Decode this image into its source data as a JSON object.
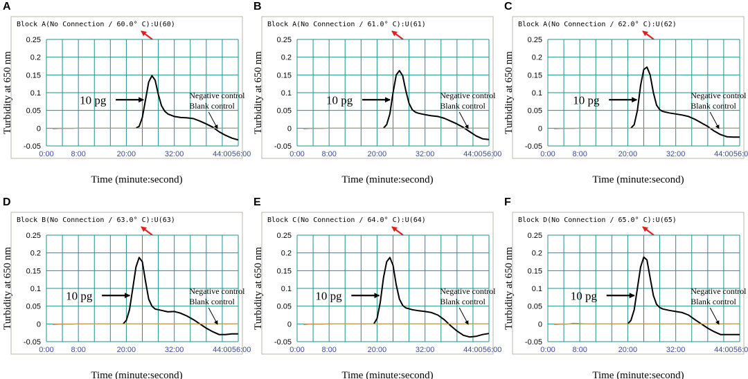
{
  "chart_data": [
    {
      "type": "line",
      "panel_label": "A",
      "title": "Block A(No Connection / 60.0° C):U(60)",
      "ylabel": "Turbidity at 650 nm",
      "xlabel": "Time (minute:second)",
      "xtick_labels": [
        "0:00",
        "8:00",
        "20:00",
        "32:00",
        "44:00",
        "56:00"
      ],
      "ytick_labels": [
        "0.25",
        "0.2",
        "0.15",
        "0.1",
        "0.05",
        "0",
        "-0.05"
      ],
      "ylim": [
        -0.05,
        0.25
      ],
      "xlim": [
        0,
        60
      ],
      "grid": true,
      "series": [
        {
          "name": "10 pg",
          "x": [
            28,
            29,
            30,
            31,
            32,
            33,
            34,
            35,
            36,
            37,
            38,
            40,
            42,
            44,
            46,
            48,
            50,
            52,
            54,
            56,
            58,
            60
          ],
          "y": [
            0,
            0.005,
            0.03,
            0.08,
            0.13,
            0.148,
            0.135,
            0.095,
            0.063,
            0.048,
            0.04,
            0.033,
            0.03,
            0.029,
            0.027,
            0.02,
            0.012,
            0.003,
            -0.01,
            -0.02,
            -0.028,
            -0.033
          ]
        },
        {
          "name": "Negative control",
          "x": [
            2,
            4,
            6,
            8,
            10,
            12,
            14,
            16,
            18,
            20,
            22,
            24,
            26,
            28,
            30,
            32,
            34,
            36,
            38,
            40,
            42,
            44,
            46,
            48,
            50,
            52,
            54,
            56,
            58,
            60
          ],
          "y": [
            -0.002,
            -0.001,
            -0.001,
            -0.001,
            0,
            0,
            0,
            0,
            0,
            0,
            0,
            0,
            0,
            0,
            0,
            0,
            0,
            0,
            0,
            0,
            0,
            0,
            0,
            0,
            0,
            0,
            0,
            0,
            0,
            0
          ]
        },
        {
          "name": "Blank control",
          "x": [
            2,
            60
          ],
          "y": [
            0,
            0
          ]
        }
      ],
      "annotations": {
        "sample": "10 pg",
        "neg": "Negative control",
        "blank": "Blank control"
      }
    },
    {
      "type": "line",
      "panel_label": "B",
      "title": "Block A(No Connection / 61.0° C):U(61)",
      "ylabel": "Turbidity at 650 nm",
      "xlabel": "Time (minute:second)",
      "xtick_labels": [
        "0:00",
        "8:00",
        "20:00",
        "32:00",
        "44:00",
        "56:00"
      ],
      "ytick_labels": [
        "0.25",
        "0.2",
        "0.15",
        "0.1",
        "0.05",
        "0",
        "-0.05"
      ],
      "ylim": [
        -0.05,
        0.25
      ],
      "xlim": [
        0,
        60
      ],
      "grid": true,
      "series": [
        {
          "name": "10 pg",
          "x": [
            27,
            28,
            29,
            30,
            31,
            32,
            33,
            34,
            35,
            36,
            37,
            38,
            40,
            42,
            44,
            46,
            48,
            50,
            52,
            54,
            56,
            58,
            60
          ],
          "y": [
            0,
            0.01,
            0.04,
            0.1,
            0.15,
            0.162,
            0.148,
            0.105,
            0.07,
            0.052,
            0.045,
            0.042,
            0.038,
            0.035,
            0.033,
            0.028,
            0.02,
            0.012,
            0.002,
            -0.01,
            -0.022,
            -0.03,
            -0.032
          ]
        },
        {
          "name": "Negative control",
          "x": [
            2,
            4,
            6,
            8,
            10,
            12,
            14,
            16,
            18,
            20,
            22,
            24,
            26,
            28,
            30,
            32,
            34,
            36,
            38,
            40,
            42,
            44,
            46,
            48,
            50,
            52,
            54,
            56,
            58,
            60
          ],
          "y": [
            -0.002,
            -0.001,
            -0.001,
            -0.001,
            0,
            0,
            0,
            0,
            0,
            0,
            0,
            0,
            0,
            0,
            0,
            0,
            0,
            0,
            0,
            0,
            0,
            0,
            0,
            0,
            0,
            0,
            0,
            0,
            0,
            0
          ]
        },
        {
          "name": "Blank control",
          "x": [
            2,
            60
          ],
          "y": [
            0,
            0
          ]
        }
      ],
      "annotations": {
        "sample": "10 pg",
        "neg": "Negative control",
        "blank": "Blank control"
      }
    },
    {
      "type": "line",
      "panel_label": "C",
      "title": "Block A(No Connection / 62.0° C):U(62)",
      "ylabel": "Turbidity at 650 nm",
      "xlabel": "Time (minute:second)",
      "xtick_labels": [
        "0:00",
        "8:00",
        "20:00",
        "32:00",
        "44:00",
        "56:00"
      ],
      "ytick_labels": [
        "0.25",
        "0.2",
        "0.15",
        "0.1",
        "0.05",
        "0",
        "-0.05"
      ],
      "ylim": [
        -0.05,
        0.25
      ],
      "xlim": [
        0,
        60
      ],
      "grid": true,
      "series": [
        {
          "name": "10 pg",
          "x": [
            26,
            27,
            28,
            29,
            30,
            31,
            32,
            33,
            34,
            35,
            36,
            38,
            40,
            42,
            44,
            46,
            48,
            50,
            52,
            54,
            56,
            58,
            60
          ],
          "y": [
            0,
            0.01,
            0.05,
            0.12,
            0.165,
            0.172,
            0.15,
            0.1,
            0.065,
            0.052,
            0.047,
            0.043,
            0.04,
            0.037,
            0.033,
            0.025,
            0.015,
            0.005,
            -0.008,
            -0.018,
            -0.024,
            -0.025,
            -0.025
          ]
        },
        {
          "name": "Negative control",
          "x": [
            2,
            4,
            6,
            8,
            10,
            12,
            14,
            16,
            18,
            20,
            22,
            24,
            26,
            28,
            30,
            32,
            34,
            36,
            38,
            40,
            42,
            44,
            46,
            48,
            50,
            52,
            54,
            56,
            58,
            60
          ],
          "y": [
            -0.002,
            -0.001,
            -0.001,
            -0.001,
            0,
            0,
            0,
            0,
            0,
            0,
            0,
            0,
            0,
            0,
            0,
            0,
            0,
            0,
            0,
            0,
            0,
            0,
            0,
            0,
            0,
            0,
            0,
            0,
            0,
            0
          ]
        },
        {
          "name": "Blank control",
          "x": [
            2,
            60
          ],
          "y": [
            0,
            0
          ]
        }
      ],
      "annotations": {
        "sample": "10 pg",
        "neg": "Negative control",
        "blank": "Blank control"
      }
    },
    {
      "type": "line",
      "panel_label": "D",
      "title": "Block B(No Connection / 63.0° C):U(63)",
      "ylabel": "Turbidity at 650 nm",
      "xlabel": "Time (minute:second)",
      "xtick_labels": [
        "0:00",
        "8:00",
        "20:00",
        "32:00",
        "44:00",
        "56:00"
      ],
      "ytick_labels": [
        "0.25",
        "0.2",
        "0.15",
        "0.1",
        "0.05",
        "0",
        "-0.05"
      ],
      "ylim": [
        -0.05,
        0.25
      ],
      "xlim": [
        0,
        60
      ],
      "grid": true,
      "series": [
        {
          "name": "10 pg",
          "x": [
            24,
            25,
            26,
            27,
            28,
            29,
            30,
            31,
            32,
            33,
            34,
            36,
            38,
            40,
            42,
            44,
            46,
            48,
            50,
            52,
            54,
            56,
            58,
            60
          ],
          "y": [
            0,
            0.01,
            0.04,
            0.1,
            0.16,
            0.187,
            0.175,
            0.12,
            0.07,
            0.05,
            0.042,
            0.038,
            0.034,
            0.035,
            0.03,
            0.022,
            0.012,
            0,
            -0.012,
            -0.022,
            -0.03,
            -0.03,
            -0.028,
            -0.028
          ]
        },
        {
          "name": "Negative control",
          "x": [
            2,
            4,
            6,
            8,
            10,
            12,
            14,
            16,
            18,
            20,
            22,
            24,
            26,
            28,
            30,
            32,
            34,
            36,
            38,
            40,
            42,
            44,
            46,
            48,
            50,
            52,
            54,
            56,
            58,
            60
          ],
          "y": [
            -0.002,
            -0.001,
            -0.001,
            -0.001,
            0,
            0,
            0,
            0,
            0,
            0,
            0,
            0,
            0,
            0,
            0,
            0,
            0,
            0,
            0,
            0,
            0,
            0,
            0,
            0,
            0,
            0,
            0,
            0,
            0,
            0
          ]
        },
        {
          "name": "Blank control",
          "x": [
            2,
            60
          ],
          "y": [
            0,
            0
          ]
        }
      ],
      "annotations": {
        "sample": "10 pg",
        "neg": "Negative control",
        "blank": "Blank control"
      }
    },
    {
      "type": "line",
      "panel_label": "E",
      "title": "Block C(No Connection / 64.0° C):U(64)",
      "ylabel": "Turbidity at 650 nm",
      "xlabel": "Time (minute:second)",
      "xtick_labels": [
        "0:00",
        "8:00",
        "20:00",
        "32:00",
        "44:00",
        "56:00"
      ],
      "ytick_labels": [
        "0.25",
        "0.2",
        "0.15",
        "0.1",
        "0.05",
        "0",
        "-0.05"
      ],
      "ylim": [
        -0.05,
        0.25
      ],
      "xlim": [
        0,
        60
      ],
      "grid": true,
      "series": [
        {
          "name": "10 pg",
          "x": [
            24,
            25,
            26,
            27,
            28,
            29,
            30,
            31,
            32,
            33,
            34,
            36,
            38,
            40,
            42,
            44,
            46,
            48,
            50,
            52,
            54,
            56,
            58,
            60
          ],
          "y": [
            0,
            0.015,
            0.06,
            0.13,
            0.175,
            0.187,
            0.165,
            0.11,
            0.07,
            0.052,
            0.045,
            0.04,
            0.037,
            0.035,
            0.032,
            0.025,
            0.012,
            -0.005,
            -0.02,
            -0.032,
            -0.037,
            -0.035,
            -0.03,
            -0.027
          ]
        },
        {
          "name": "Negative control",
          "x": [
            2,
            4,
            6,
            8,
            10,
            12,
            14,
            16,
            18,
            20,
            22,
            24,
            26,
            28,
            30,
            32,
            34,
            36,
            38,
            40,
            42,
            44,
            46,
            48,
            50,
            52,
            54,
            56,
            58,
            60
          ],
          "y": [
            -0.002,
            -0.001,
            -0.001,
            -0.001,
            0,
            0,
            0,
            0,
            0,
            0,
            0,
            0,
            0,
            0,
            0,
            0,
            0,
            0,
            0,
            0,
            0,
            0,
            0,
            0,
            0,
            0,
            0,
            0,
            0,
            0
          ]
        },
        {
          "name": "Blank control",
          "x": [
            2,
            60
          ],
          "y": [
            0,
            0
          ]
        }
      ],
      "annotations": {
        "sample": "10 pg",
        "neg": "Negative control",
        "blank": "Blank control"
      }
    },
    {
      "type": "line",
      "panel_label": "F",
      "title": "Block D(No Connection / 65.0° C):U(65)",
      "ylabel": "Turbidity at 650 nm",
      "xlabel": "Time (minute:second)",
      "xtick_labels": [
        "0:00",
        "8:00",
        "20:00",
        "32:00",
        "44:00",
        "56:00"
      ],
      "ytick_labels": [
        "0.25",
        "0.2",
        "0.15",
        "0.1",
        "0.05",
        "0",
        "-0.05"
      ],
      "ylim": [
        -0.05,
        0.25
      ],
      "xlim": [
        0,
        60
      ],
      "grid": true,
      "series": [
        {
          "name": "10 pg",
          "x": [
            25,
            26,
            27,
            28,
            29,
            30,
            31,
            32,
            33,
            34,
            35,
            36,
            38,
            40,
            42,
            44,
            46,
            48,
            50,
            52,
            54,
            56,
            58,
            60
          ],
          "y": [
            0,
            0.01,
            0.04,
            0.1,
            0.16,
            0.188,
            0.18,
            0.13,
            0.08,
            0.055,
            0.046,
            0.042,
            0.038,
            0.035,
            0.032,
            0.025,
            0.012,
            0,
            -0.012,
            -0.022,
            -0.03,
            -0.03,
            -0.03,
            -0.03
          ]
        },
        {
          "name": "Negative control",
          "x": [
            2,
            4,
            6,
            8,
            10,
            12,
            14,
            16,
            18,
            20,
            22,
            24,
            26,
            28,
            30,
            32,
            34,
            36,
            38,
            40,
            42,
            44,
            46,
            48,
            50,
            52,
            54,
            56,
            58,
            60
          ],
          "y": [
            -0.002,
            -0.001,
            -0.001,
            0.002,
            0.001,
            0,
            0,
            0,
            0,
            0,
            0,
            0,
            0,
            0,
            0,
            0,
            0,
            0,
            0,
            0,
            0,
            0,
            0,
            0,
            0,
            0,
            0,
            0,
            0,
            0
          ]
        },
        {
          "name": "Blank control",
          "x": [
            2,
            60
          ],
          "y": [
            0,
            0
          ]
        }
      ],
      "annotations": {
        "sample": "10 pg",
        "neg": "Negative control",
        "blank": "Blank control"
      }
    }
  ],
  "colors": {
    "grid": "#1f8f8f",
    "axis_text": "#3a4a9a",
    "frame_bg": "#ece9d8",
    "arrow": "#e02020",
    "curve": "#000000",
    "neg_curve": "#8a8a8a",
    "blank_curve": "#c8a848"
  }
}
